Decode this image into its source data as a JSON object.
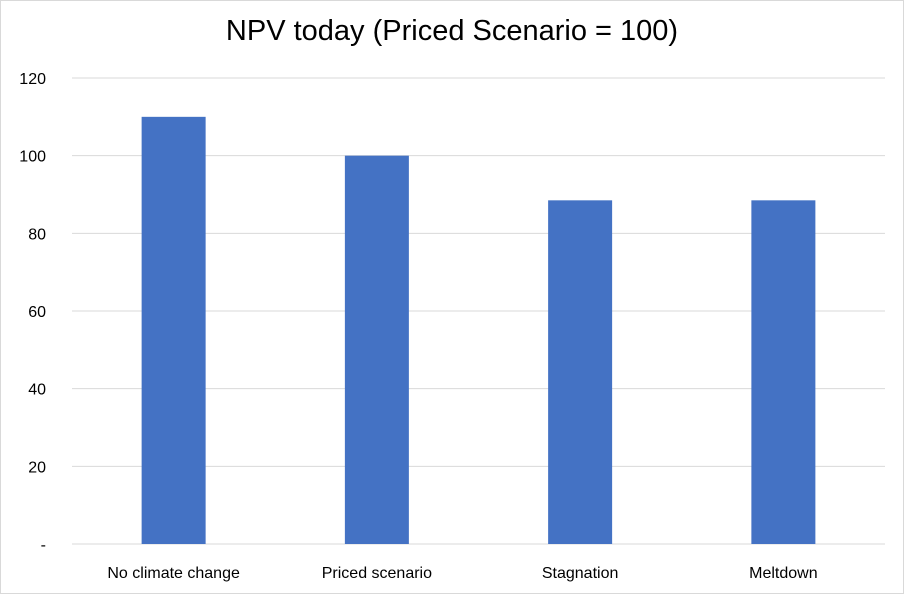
{
  "chart_data": {
    "type": "bar",
    "title": "NPV today (Priced Scenario = 100)",
    "categories": [
      "No climate change",
      "Priced scenario",
      "Stagnation",
      "Meltdown"
    ],
    "values": [
      110,
      100,
      88.5,
      88.5
    ],
    "ylim": [
      0,
      120
    ],
    "yticks": [
      0,
      20,
      40,
      60,
      80,
      100,
      120
    ],
    "ytick_labels": [
      "-",
      "20",
      "40",
      "60",
      "80",
      "100",
      "120"
    ],
    "xlabel": "",
    "ylabel": "",
    "grid": true,
    "legend": "none",
    "bar_color": "#4472c4",
    "grid_color": "#d9d9d9"
  }
}
